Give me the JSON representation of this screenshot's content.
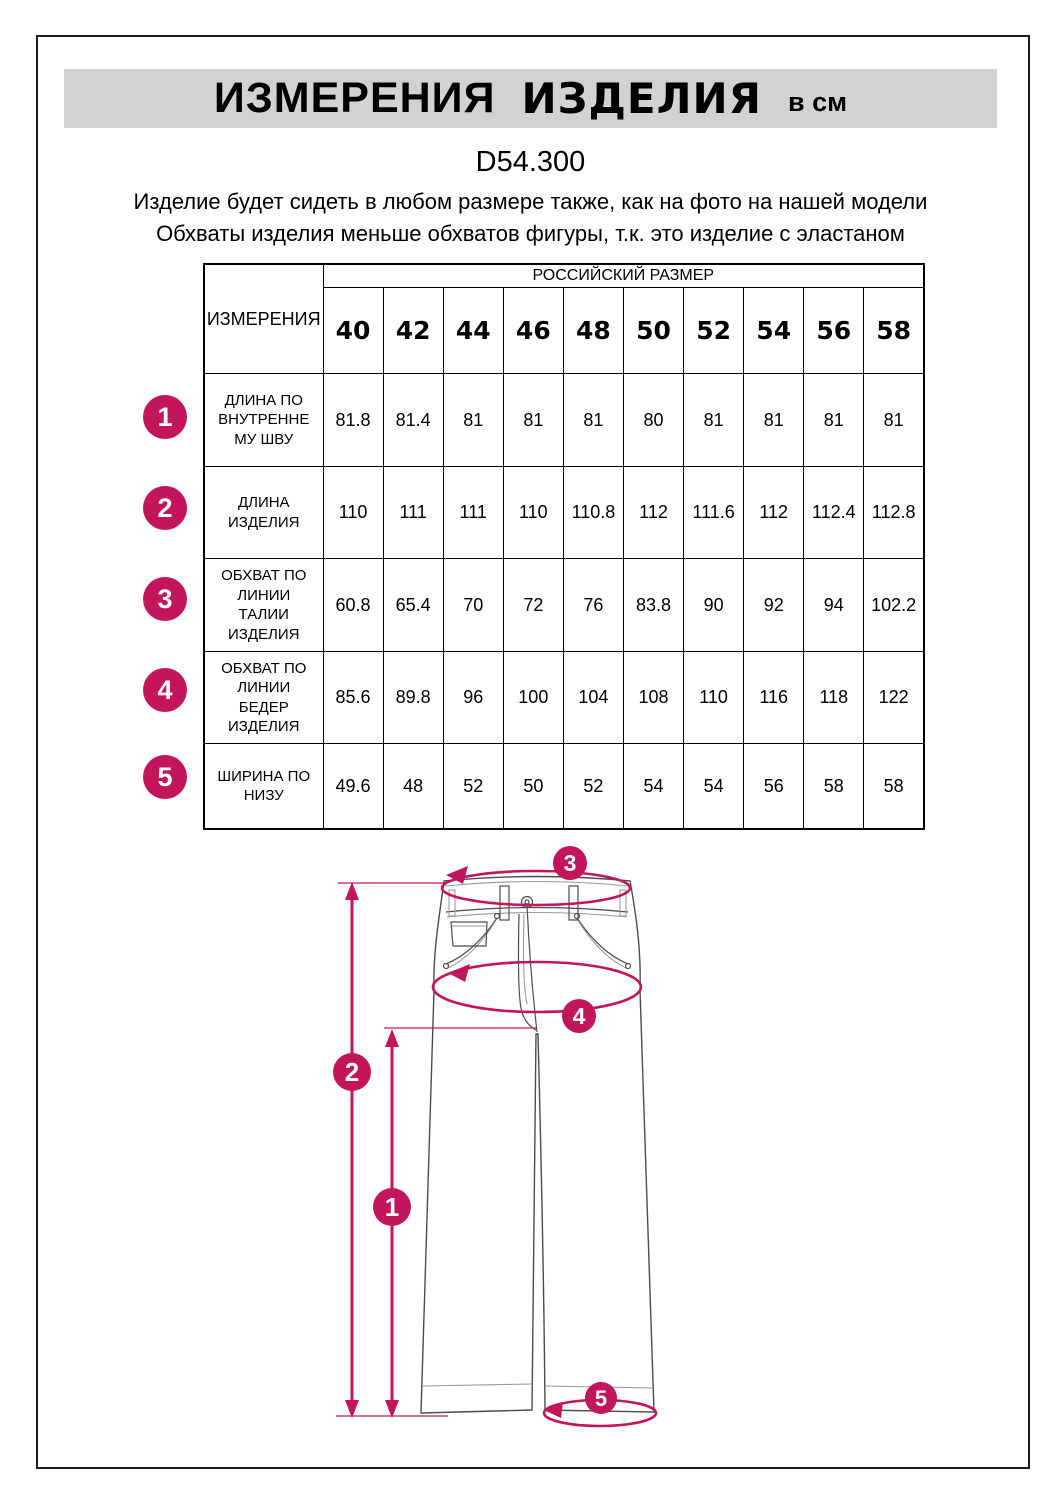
{
  "header": {
    "title_word1": "ИЗМЕРЕНИЯ",
    "title_word2": "ИЗДЕЛИЯ",
    "title_unit": "в см",
    "model": "D54.300",
    "note1": "Изделие будет сидеть в любом размере также, как на фото на нашей модели",
    "note2": "Обхваты изделия меньше обхватов фигуры, т.к. это изделие с эластаном"
  },
  "table": {
    "corner_label": "ИЗМЕРЕНИЯ",
    "size_group_label": "РОССИЙСКИЙ РАЗМЕР",
    "sizes": [
      "40",
      "42",
      "44",
      "46",
      "48",
      "50",
      "52",
      "54",
      "56",
      "58"
    ],
    "rows": [
      {
        "num": "1",
        "label": "ДЛИНА ПО\nВНУТРЕННЕ\nМУ ШВУ",
        "values": [
          "81.8",
          "81.4",
          "81",
          "81",
          "81",
          "80",
          "81",
          "81",
          "81",
          "81"
        ]
      },
      {
        "num": "2",
        "label": "ДЛИНА\nИЗДЕЛИЯ",
        "values": [
          "110",
          "111",
          "111",
          "110",
          "110.8",
          "112",
          "111.6",
          "112",
          "112.4",
          "112.8"
        ]
      },
      {
        "num": "3",
        "label": "ОБХВАТ ПО\nЛИНИИ\nТАЛИИ\nИЗДЕЛИЯ",
        "values": [
          "60.8",
          "65.4",
          "70",
          "72",
          "76",
          "83.8",
          "90",
          "92",
          "94",
          "102.2"
        ]
      },
      {
        "num": "4",
        "label": "ОБХВАТ ПО\nЛИНИИ\nБЕДЕР\nИЗДЕЛИЯ",
        "values": [
          "85.6",
          "89.8",
          "96",
          "100",
          "104",
          "108",
          "110",
          "116",
          "118",
          "122"
        ]
      },
      {
        "num": "5",
        "label": "ШИРИНА ПО\nНИЗУ",
        "values": [
          "49.6",
          "48",
          "52",
          "50",
          "52",
          "54",
          "54",
          "56",
          "58",
          "58"
        ]
      }
    ]
  },
  "diagram": {
    "callout_1": "1",
    "callout_2": "2",
    "callout_3": "3",
    "callout_4": "4",
    "callout_5": "5"
  },
  "colors": {
    "accent": "#C2155C",
    "band_bg": "#D2D2D2"
  }
}
